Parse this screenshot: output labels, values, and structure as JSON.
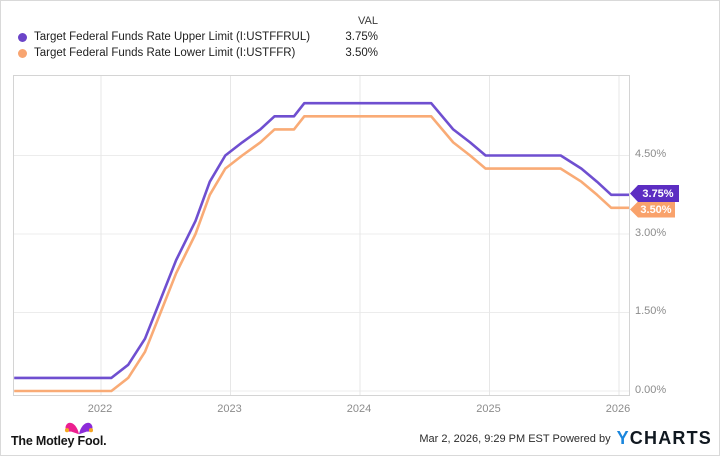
{
  "legend": {
    "val_header": "VAL",
    "items": [
      {
        "label": "Target Federal Funds Rate Upper Limit (I:USTFFRUL)",
        "value": "3.75%"
      },
      {
        "label": "Target Federal Funds Rate Lower Limit (I:USTFFR)",
        "value": "3.50%"
      }
    ]
  },
  "colors": {
    "upper_line": "#6f4fd0",
    "upper_dot": "#6b44c8",
    "upper_badge": "#5c2dc2",
    "lower_line": "#f9ab76",
    "lower_dot": "#f8a571",
    "lower_badge": "#f9a26b",
    "gridline": "#ececec",
    "plot_border": "#d4d4d4",
    "tick_text": "#8c8c8c"
  },
  "badges": {
    "upper": "3.75%",
    "lower": "3.50%"
  },
  "chart_data": {
    "type": "line",
    "title": "",
    "xlabel": "",
    "ylabel": "",
    "legend_position": "top",
    "grid": true,
    "x_unit": "decimal year",
    "xlim": [
      2021.33,
      2026.08
    ],
    "ylim": [
      -0.08,
      6.02
    ],
    "x_ticks": [
      2022,
      2023,
      2024,
      2025,
      2026
    ],
    "x_tick_labels": [
      "2022",
      "2023",
      "2024",
      "2025",
      "2026"
    ],
    "y_gridlines": [
      0,
      1.5,
      3.0,
      4.5
    ],
    "y_tick_labels": [
      "0.00%",
      "1.50%",
      "3.00%",
      "4.50%"
    ],
    "series": [
      {
        "name": "Target Federal Funds Rate Lower Limit (I:USTFFR)",
        "current_value": "3.50%",
        "color_key": "lower_line",
        "points": [
          [
            2021.33,
            0.0
          ],
          [
            2022.08,
            0.0
          ],
          [
            2022.21,
            0.25
          ],
          [
            2022.34,
            0.75
          ],
          [
            2022.46,
            1.5
          ],
          [
            2022.58,
            2.25
          ],
          [
            2022.73,
            3.0
          ],
          [
            2022.84,
            3.75
          ],
          [
            2022.96,
            4.25
          ],
          [
            2023.09,
            4.5
          ],
          [
            2023.23,
            4.75
          ],
          [
            2023.34,
            5.0
          ],
          [
            2023.49,
            5.0
          ],
          [
            2023.57,
            5.25
          ],
          [
            2024.55,
            5.25
          ],
          [
            2024.72,
            4.75
          ],
          [
            2024.85,
            4.5
          ],
          [
            2024.97,
            4.25
          ],
          [
            2025.55,
            4.25
          ],
          [
            2025.71,
            4.0
          ],
          [
            2025.83,
            3.75
          ],
          [
            2025.94,
            3.5
          ],
          [
            2026.08,
            3.5
          ]
        ]
      },
      {
        "name": "Target Federal Funds Rate Upper Limit (I:USTFFRUL)",
        "current_value": "3.75%",
        "color_key": "upper_line",
        "points": [
          [
            2021.33,
            0.25
          ],
          [
            2022.08,
            0.25
          ],
          [
            2022.21,
            0.5
          ],
          [
            2022.34,
            1.0
          ],
          [
            2022.46,
            1.75
          ],
          [
            2022.58,
            2.5
          ],
          [
            2022.73,
            3.25
          ],
          [
            2022.84,
            4.0
          ],
          [
            2022.96,
            4.5
          ],
          [
            2023.09,
            4.75
          ],
          [
            2023.23,
            5.0
          ],
          [
            2023.34,
            5.25
          ],
          [
            2023.49,
            5.25
          ],
          [
            2023.57,
            5.5
          ],
          [
            2024.55,
            5.5
          ],
          [
            2024.72,
            5.0
          ],
          [
            2024.85,
            4.75
          ],
          [
            2024.97,
            4.5
          ],
          [
            2025.55,
            4.5
          ],
          [
            2025.71,
            4.25
          ],
          [
            2025.83,
            4.0
          ],
          [
            2025.94,
            3.75
          ],
          [
            2026.08,
            3.75
          ]
        ]
      }
    ]
  },
  "footer": {
    "brand": "The Motley Fool.",
    "timestamp": "Mar 2, 2026, 9:29 PM EST",
    "powered_by": "Powered by",
    "ycharts_y": "Y",
    "ycharts_rest": "CHARTS"
  }
}
